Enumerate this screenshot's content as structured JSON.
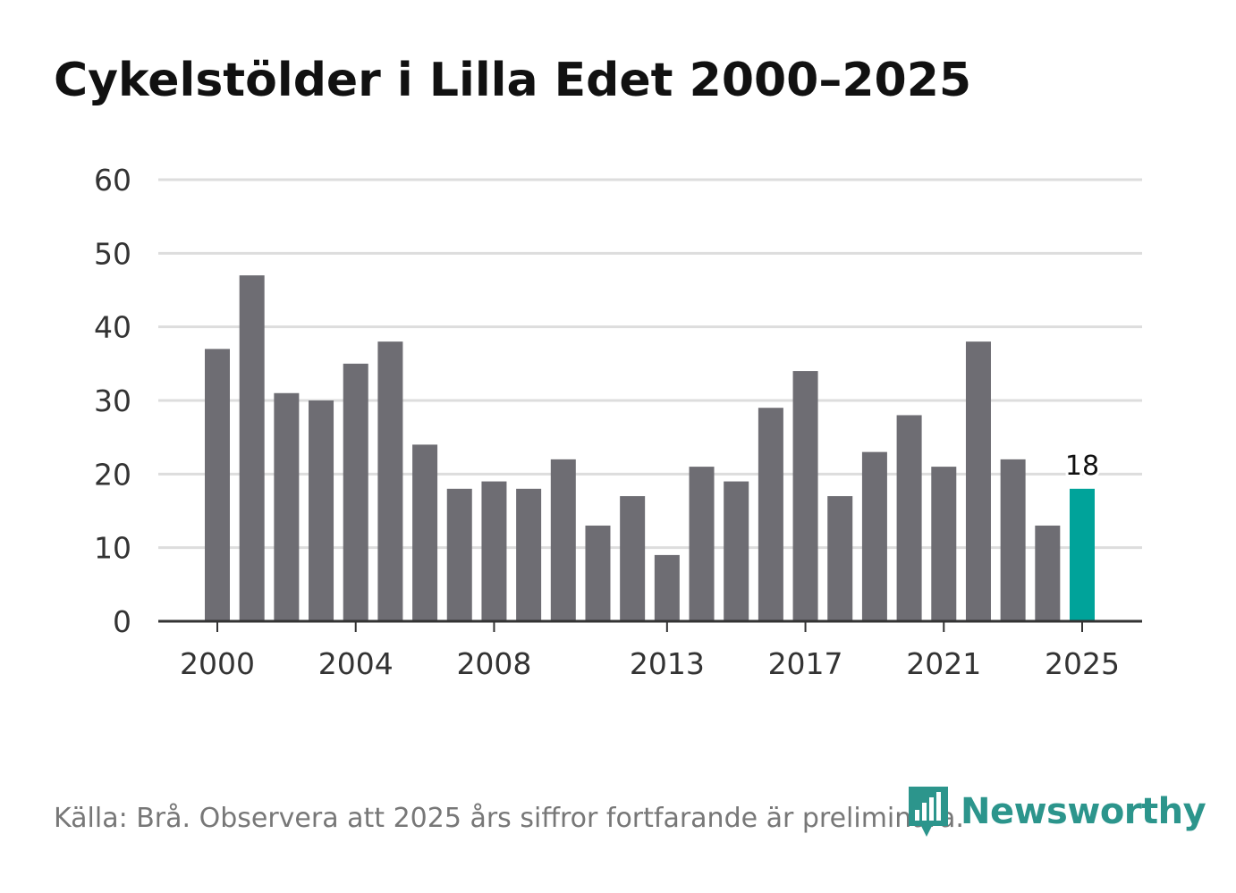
{
  "header": {
    "title": "Cykelstölder i Lilla Edet 2000–2025"
  },
  "footer": {
    "source": "Källa: Brå. Observera att 2025 års siffror fortfarande är preliminära.",
    "brand": "Newsworthy",
    "brand_icon": "newsworthy-logo-icon"
  },
  "colors": {
    "bar": "#6e6d73",
    "highlight": "#00a39a",
    "grid": "#dddddd",
    "axis": "#333333",
    "brand": "#2c958c"
  },
  "chart_data": {
    "type": "bar",
    "title": "Cykelstölder i Lilla Edet 2000–2025",
    "xlabel": "",
    "ylabel": "",
    "categories": [
      2000,
      2001,
      2002,
      2003,
      2004,
      2005,
      2006,
      2007,
      2008,
      2009,
      2010,
      2011,
      2012,
      2013,
      2014,
      2015,
      2016,
      2017,
      2018,
      2019,
      2020,
      2021,
      2022,
      2023,
      2024,
      2025
    ],
    "values": [
      37,
      47,
      31,
      30,
      35,
      38,
      24,
      18,
      19,
      18,
      22,
      13,
      17,
      9,
      21,
      19,
      29,
      34,
      17,
      23,
      28,
      21,
      38,
      22,
      13,
      18
    ],
    "ylim": [
      0,
      60
    ],
    "yticks": [
      0,
      10,
      20,
      30,
      40,
      50,
      60
    ],
    "xtick_labels": [
      "2000",
      "2004",
      "2008",
      "2013",
      "2017",
      "2021",
      "2025"
    ],
    "highlight_category": 2025,
    "annotation": "18",
    "grid": true
  }
}
